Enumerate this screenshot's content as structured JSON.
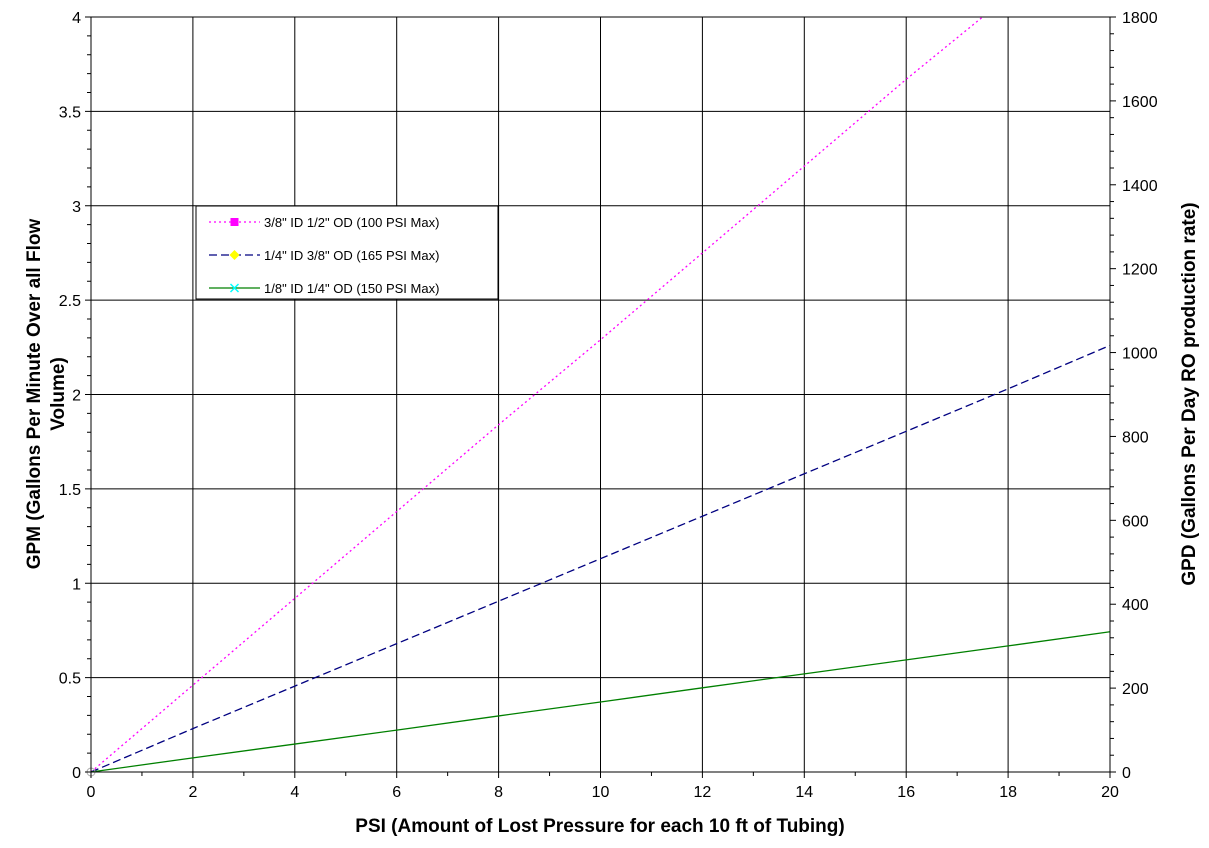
{
  "chart_data": {
    "type": "line",
    "title": "",
    "xlabel": "PSI (Amount of Lost Pressure for each 10 ft of Tubing)",
    "ylabel_lines": [
      "GPM (Gallons Per Minute Over all Flow",
      "Volume)"
    ],
    "y2label": "GPD (Gallons Per Day RO production rate)",
    "xlim": [
      0,
      20
    ],
    "ylim": [
      0,
      4
    ],
    "y2lim": [
      0,
      1800
    ],
    "x_ticks": [
      0,
      2,
      4,
      6,
      8,
      10,
      12,
      14,
      16,
      18,
      20
    ],
    "x_tick_labels": [
      "0",
      "2",
      "4",
      "6",
      "8",
      "10",
      "12",
      "14",
      "16",
      "18",
      "20"
    ],
    "y_ticks": [
      0,
      0.5,
      1,
      1.5,
      2,
      2.5,
      3,
      3.5,
      4
    ],
    "y_tick_labels": [
      "0",
      "0.5",
      "1",
      "1.5",
      "2",
      "2.5",
      "3",
      "3.5",
      "4"
    ],
    "y2_ticks": [
      0,
      200,
      400,
      600,
      800,
      1000,
      1200,
      1400,
      1600,
      1800
    ],
    "y2_tick_labels": [
      "0",
      "200",
      "400",
      "600",
      "800",
      "1000",
      "1200",
      "1400",
      "1600",
      "1800"
    ],
    "grid": true,
    "legend_position": "upper-left-inside",
    "series": [
      {
        "name": "3/8\" ID 1/2\" OD (100 PSI Max)",
        "color": "#ff00ff",
        "dash": "dotted",
        "marker": "square",
        "marker_color": "#ff00ff",
        "x": [
          0,
          2,
          4,
          6,
          8,
          10,
          12,
          14,
          16,
          17.5
        ],
        "y": [
          0,
          0.46,
          0.92,
          1.38,
          1.84,
          2.29,
          2.75,
          3.21,
          3.67,
          4.0
        ]
      },
      {
        "name": "1/4\" ID 3/8\" OD (165 PSI Max)",
        "color": "#000080",
        "dash": "dashed",
        "marker": "diamond",
        "marker_color": "#ffff00",
        "x": [
          0,
          2,
          4,
          6,
          8,
          10,
          12,
          14,
          16,
          18,
          20
        ],
        "y": [
          0,
          0.23,
          0.455,
          0.68,
          0.905,
          1.13,
          1.355,
          1.58,
          1.805,
          2.03,
          2.26
        ]
      },
      {
        "name": "1/8\" ID 1/4\" OD (150 PSI Max)",
        "color": "#008000",
        "dash": "solid",
        "marker": "x",
        "marker_color": "#00ffff",
        "x": [
          0,
          2,
          4,
          6,
          8,
          10,
          12,
          14,
          16,
          18,
          20
        ],
        "y": [
          0,
          0.075,
          0.148,
          0.222,
          0.297,
          0.371,
          0.446,
          0.52,
          0.594,
          0.668,
          0.743
        ]
      }
    ]
  }
}
